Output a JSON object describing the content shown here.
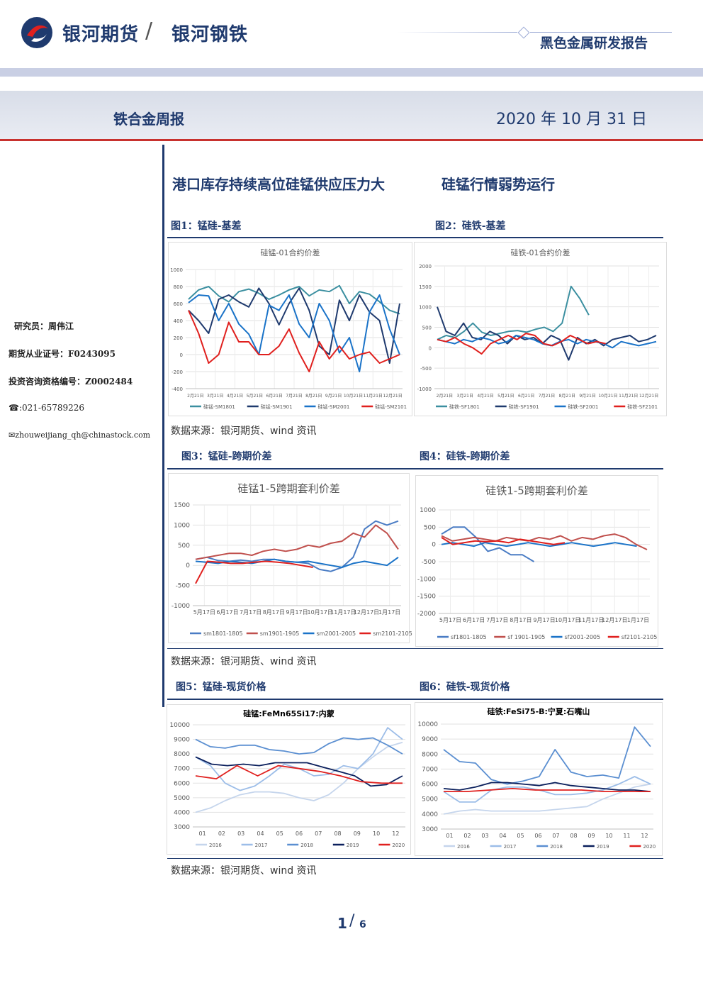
{
  "header": {
    "brand": "银河期货",
    "separator": "/",
    "brand2": "银河钢铁",
    "report_type": "黑色金属研发报告",
    "weekly_title": "铁合金周报",
    "date": "2020 年 10 月 31 日"
  },
  "sidebar": {
    "researcher": "研究员：周伟江",
    "futures_cert": "期货从业证号：F0243095",
    "consult_cert": "投资咨询资格编号：Z0002484",
    "phone": "☎:021-65789226",
    "email": "✉zhouweijiang_qh@chinastock.com"
  },
  "headlines": {
    "left": "港口库存持续高位硅锰供应压力大",
    "right": "硅锰行情弱势运行"
  },
  "figures": {
    "fig1": "图1：锰硅-基差",
    "fig2": "图2：硅铁-基差",
    "fig3": "图3：锰硅-跨期价差",
    "fig4": "图4：硅铁-跨期价差",
    "fig5": "图5：锰硅-现货价格",
    "fig6": "图6：硅铁-现货价格"
  },
  "sources": {
    "s1": "数据来源：银河期货、wind 资讯",
    "s2": "数据来源：银河期货、wind 资讯",
    "s3": "数据来源：银河期货、wind 资讯"
  },
  "page": {
    "current": "1",
    "sep": "/",
    "total": "6"
  },
  "chart_data": [
    {
      "type": "line",
      "title": "硅锰-01合约价差",
      "ylim": [
        -400,
        1000
      ],
      "yticks": [
        1000,
        800,
        600,
        400,
        200,
        0,
        -200,
        -400
      ],
      "xticks": [
        "2月21日",
        "3月21日",
        "4月21日",
        "5月21日",
        "6月21日",
        "7月21日",
        "8月21日",
        "9月21日",
        "10月21日",
        "11月21日",
        "12月21日"
      ],
      "series": [
        {
          "name": "硅锰-SM1801",
          "color": "#3b8fa0",
          "values": [
            650,
            760,
            800,
            690,
            620,
            740,
            770,
            720,
            650,
            700,
            760,
            800,
            690,
            760,
            740,
            810,
            600,
            740,
            710,
            620,
            520,
            480
          ]
        },
        {
          "name": "硅锰-SM1901",
          "color": "#1f3a6e",
          "values": [
            520,
            400,
            250,
            650,
            700,
            620,
            560,
            780,
            600,
            350,
            600,
            780,
            520,
            100,
            0,
            640,
            400,
            700,
            500,
            400,
            -100,
            600
          ]
        },
        {
          "name": "硅锰-SM2001",
          "color": "#1a73c8",
          "values": [
            610,
            700,
            690,
            400,
            600,
            360,
            240,
            0,
            580,
            520,
            700,
            360,
            200,
            600,
            400,
            20,
            200,
            -200,
            500,
            700,
            300,
            0
          ]
        },
        {
          "name": "硅锰-SM2101",
          "color": "#e0201e",
          "values": [
            520,
            250,
            -100,
            0,
            380,
            150,
            150,
            0,
            0,
            100,
            300,
            20,
            -200,
            150,
            -50,
            100,
            -50,
            0,
            30,
            -100,
            -50,
            0
          ]
        }
      ]
    },
    {
      "type": "line",
      "title": "硅铁-01合约价差",
      "ylim": [
        -1000,
        2000
      ],
      "yticks": [
        2000,
        1500,
        1000,
        500,
        0,
        -500,
        -1000
      ],
      "xticks": [
        "2月21日",
        "3月21日",
        "4月21日",
        "5月21日",
        "6月21日",
        "7月21日",
        "8月21日",
        "9月21日",
        "10月21日",
        "11月21日",
        "12月21日"
      ],
      "series": [
        {
          "name": "硅铁-SF1801",
          "color": "#3b8fa0",
          "values": [
            200,
            300,
            250,
            400,
            600,
            380,
            300,
            350,
            400,
            420,
            380,
            450,
            500,
            400,
            600,
            1500,
            1200,
            800
          ]
        },
        {
          "name": "硅铁-SF1901",
          "color": "#1f3a6e",
          "values": [
            1000,
            400,
            300,
            600,
            250,
            200,
            400,
            300,
            100,
            300,
            200,
            250,
            100,
            300,
            200,
            -300,
            250,
            100,
            200,
            50,
            200,
            250,
            300,
            150,
            200,
            300
          ]
        },
        {
          "name": "硅铁-SF2001",
          "color": "#1a73c8",
          "values": [
            200,
            150,
            100,
            200,
            150,
            250,
            200,
            100,
            150,
            300,
            250,
            200,
            100,
            50,
            150,
            200,
            100,
            200,
            150,
            100,
            0,
            150,
            100,
            50,
            100,
            150
          ]
        },
        {
          "name": "硅铁-SF2101",
          "color": "#e0201e",
          "values": [
            200,
            150,
            250,
            100,
            0,
            -150,
            100,
            200,
            300,
            200,
            350,
            300,
            100,
            50,
            150,
            300,
            200,
            100,
            150,
            100
          ]
        }
      ]
    },
    {
      "type": "line",
      "title": "硅锰1-5跨期套利价差",
      "ylim": [
        -1000,
        1500
      ],
      "yticks": [
        1500,
        1000,
        500,
        0,
        -500,
        -1000
      ],
      "xticks": [
        "5月17日",
        "6月17日",
        "7月17日",
        "8月17日",
        "9月17日",
        "10月17日",
        "11月17日",
        "12月17日",
        "1月17日"
      ],
      "series": [
        {
          "name": "sm1801-1805",
          "color": "#4a7cc4",
          "values": [
            150,
            200,
            120,
            100,
            130,
            100,
            150,
            150,
            100,
            80,
            50,
            -100,
            -150,
            -50,
            200,
            900,
            1100,
            1000,
            1100
          ]
        },
        {
          "name": "sm1901-1905",
          "color": "#c0504d",
          "values": [
            150,
            200,
            250,
            300,
            300,
            250,
            350,
            400,
            350,
            400,
            500,
            450,
            550,
            600,
            800,
            700,
            1000,
            800,
            400
          ]
        },
        {
          "name": "sm2001-2005",
          "color": "#1a73c8",
          "values": [
            100,
            80,
            50,
            100,
            80,
            50,
            100,
            150,
            100,
            80,
            100,
            50,
            0,
            -50,
            50,
            100,
            50,
            0,
            200
          ]
        },
        {
          "name": "sm2101-2105",
          "color": "#e0201e",
          "values": [
            -450,
            100,
            80,
            50,
            50,
            80,
            100,
            80,
            50,
            0,
            -50
          ]
        }
      ]
    },
    {
      "type": "line",
      "title": "硅铁1-5跨期套利价差",
      "ylim": [
        -2000,
        1000
      ],
      "yticks": [
        1000,
        500,
        0,
        -500,
        -1000,
        -1500,
        -2000
      ],
      "xticks": [
        "5月17日",
        "6月17日",
        "7月17日",
        "8月17日",
        "9月17日",
        "10月17日",
        "11月17日",
        "12月17日",
        "1月17日"
      ],
      "series": [
        {
          "name": "sf1801-1805",
          "color": "#4a7cc4",
          "values": [
            300,
            500,
            500,
            200,
            -200,
            -100,
            -300,
            -300,
            -500
          ]
        },
        {
          "name": "sf 1901-1905",
          "color": "#c0504d",
          "values": [
            250,
            100,
            150,
            200,
            150,
            100,
            200,
            150,
            100,
            200,
            150,
            250,
            100,
            200,
            150,
            250,
            300,
            200,
            0,
            -150
          ]
        },
        {
          "name": "sf2001-2005",
          "color": "#1a73c8",
          "values": [
            0,
            50,
            0,
            -50,
            50,
            0,
            -50,
            0,
            50,
            0,
            -50,
            0,
            50,
            0,
            -50,
            0,
            50,
            0,
            -50
          ]
        },
        {
          "name": "sf2101-2105",
          "color": "#e0201e",
          "values": [
            200,
            0,
            50,
            100,
            80,
            100,
            50,
            150,
            100,
            50,
            0,
            50
          ]
        }
      ]
    },
    {
      "type": "line",
      "title": "硅锰:FeMn65Si17:内蒙",
      "ylim": [
        3000,
        10000
      ],
      "yticks": [
        10000,
        9000,
        8000,
        7000,
        6000,
        5000,
        4000,
        3000
      ],
      "xticks": [
        "01",
        "02",
        "03",
        "04",
        "05",
        "06",
        "07",
        "08",
        "09",
        "10",
        "12"
      ],
      "series": [
        {
          "name": "2016",
          "color": "#c5d5ec",
          "values": [
            4000,
            4300,
            4800,
            5200,
            5400,
            5400,
            5300,
            5000,
            4800,
            5200,
            6000,
            7000,
            7800,
            8500,
            8800
          ]
        },
        {
          "name": "2017",
          "color": "#9cbde8",
          "values": [
            7800,
            7200,
            6000,
            5500,
            5800,
            6500,
            7300,
            7000,
            6500,
            6600,
            7200,
            7000,
            8000,
            9800,
            9000
          ]
        },
        {
          "name": "2018",
          "color": "#5b8fd1",
          "values": [
            9000,
            8500,
            8400,
            8600,
            8600,
            8300,
            8200,
            8000,
            8100,
            8700,
            9100,
            9000,
            9100,
            8600,
            8000
          ]
        },
        {
          "name": "2019",
          "color": "#0a1f5c",
          "values": [
            7800,
            7300,
            7200,
            7300,
            7200,
            7400,
            7400,
            7400,
            7100,
            6800,
            6500,
            5800,
            5900,
            6500
          ]
        },
        {
          "name": "2020",
          "color": "#e0201e",
          "values": [
            6500,
            6300,
            7200,
            6500,
            7200,
            7000,
            6800,
            6500,
            6100,
            6000,
            6000
          ]
        }
      ]
    },
    {
      "type": "line",
      "title": "硅铁:FeSi75-B:宁夏:石嘴山",
      "ylim": [
        3000,
        10000
      ],
      "yticks": [
        10000,
        9000,
        8000,
        7000,
        6000,
        5000,
        4000,
        3000
      ],
      "xticks": [
        "01",
        "02",
        "03",
        "04",
        "05",
        "06",
        "07",
        "08",
        "09",
        "10",
        "11",
        "12"
      ],
      "series": [
        {
          "name": "2016",
          "color": "#c5d5ec",
          "values": [
            4000,
            4200,
            4300,
            4200,
            4200,
            4200,
            4200,
            4300,
            4400,
            4500,
            5000,
            5400,
            5800,
            6000
          ]
        },
        {
          "name": "2017",
          "color": "#9cbde8",
          "values": [
            5500,
            4800,
            4800,
            5600,
            5800,
            5800,
            5600,
            5300,
            5300,
            5400,
            5600,
            6000,
            6500,
            6000
          ]
        },
        {
          "name": "2018",
          "color": "#5b8fd1",
          "values": [
            8300,
            7500,
            7400,
            6300,
            6000,
            6200,
            6500,
            8300,
            6800,
            6500,
            6600,
            6400,
            9800,
            8500
          ]
        },
        {
          "name": "2019",
          "color": "#0a1f5c",
          "values": [
            5700,
            5600,
            5800,
            6100,
            6100,
            6000,
            5900,
            6100,
            5900,
            5800,
            5700,
            5600,
            5600,
            5500
          ]
        },
        {
          "name": "2020",
          "color": "#e0201e",
          "values": [
            5500,
            5500,
            5600,
            5700,
            5600,
            5600,
            5600,
            5500,
            5500,
            5500
          ]
        }
      ]
    }
  ]
}
